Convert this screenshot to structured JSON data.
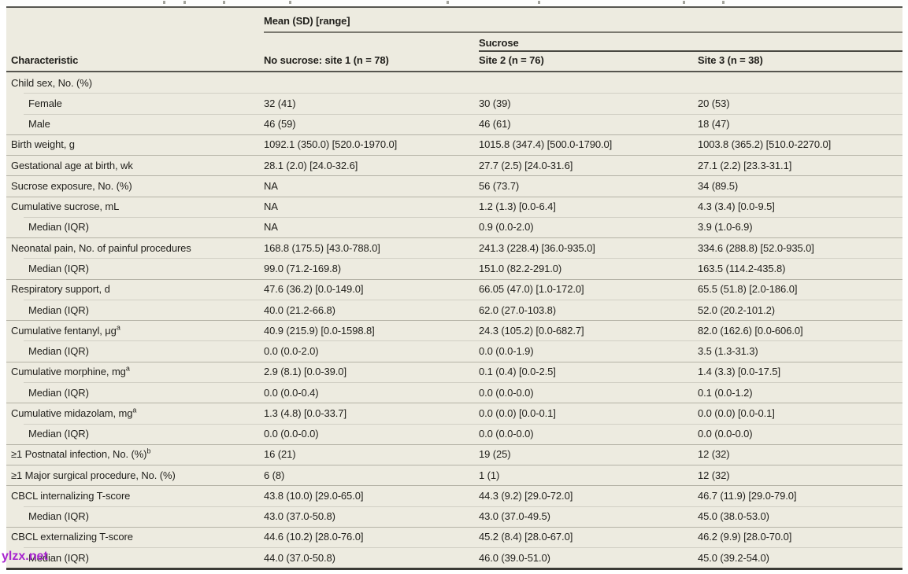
{
  "table": {
    "spanner_top": "Mean (SD) [range]",
    "spanner_sub": "Sucrose",
    "columns": {
      "characteristic": "Characteristic",
      "col1": "No sucrose: site 1 (n = 78)",
      "col2": "Site 2 (n = 76)",
      "col3": "Site 3 (n = 38)"
    },
    "rows": [
      {
        "label": "Child sex, No. (%)",
        "indent": false,
        "sup": "",
        "divider": "none",
        "values": [
          "",
          "",
          ""
        ]
      },
      {
        "label": "Female",
        "indent": true,
        "sup": "",
        "divider": "indent",
        "values": [
          "32 (41)",
          "30 (39)",
          "20 (53)"
        ]
      },
      {
        "label": "Male",
        "indent": true,
        "sup": "",
        "divider": "indent",
        "values": [
          "46 (59)",
          "46 (61)",
          "18 (47)"
        ]
      },
      {
        "label": "Birth weight, g",
        "indent": false,
        "sup": "",
        "divider": "full",
        "values": [
          "1092.1 (350.0) [520.0-1970.0]",
          "1015.8 (347.4) [500.0-1790.0]",
          "1003.8 (365.2) [510.0-2270.0]"
        ]
      },
      {
        "label": "Gestational age at birth, wk",
        "indent": false,
        "sup": "",
        "divider": "full",
        "values": [
          "28.1 (2.0) [24.0-32.6]",
          "27.7 (2.5) [24.0-31.6]",
          "27.1 (2.2) [23.3-31.1]"
        ]
      },
      {
        "label": "Sucrose exposure, No. (%)",
        "indent": false,
        "sup": "",
        "divider": "full",
        "values": [
          "NA",
          "56 (73.7)",
          "34 (89.5)"
        ]
      },
      {
        "label": "Cumulative sucrose, mL",
        "indent": false,
        "sup": "",
        "divider": "full",
        "values": [
          "NA",
          "1.2 (1.3) [0.0-6.4]",
          "4.3 (3.4) [0.0-9.5]"
        ]
      },
      {
        "label": "Median (IQR)",
        "indent": true,
        "sup": "",
        "divider": "indent",
        "values": [
          "NA",
          "0.9 (0.0-2.0)",
          "3.9 (1.0-6.9)"
        ]
      },
      {
        "label": "Neonatal pain, No. of painful procedures",
        "indent": false,
        "sup": "",
        "divider": "full",
        "values": [
          "168.8 (175.5) [43.0-788.0]",
          "241.3 (228.4) [36.0-935.0]",
          "334.6 (288.8) [52.0-935.0]"
        ]
      },
      {
        "label": "Median (IQR)",
        "indent": true,
        "sup": "",
        "divider": "indent",
        "values": [
          "99.0 (71.2-169.8)",
          "151.0 (82.2-291.0)",
          "163.5 (114.2-435.8)"
        ]
      },
      {
        "label": "Respiratory support, d",
        "indent": false,
        "sup": "",
        "divider": "full",
        "values": [
          "47.6 (36.2) [0.0-149.0]",
          "66.05 (47.0) [1.0-172.0]",
          "65.5 (51.8) [2.0-186.0]"
        ]
      },
      {
        "label": "Median (IQR)",
        "indent": true,
        "sup": "",
        "divider": "indent",
        "values": [
          "40.0 (21.2-66.8)",
          "62.0 (27.0-103.8)",
          "52.0 (20.2-101.2)"
        ]
      },
      {
        "label": "Cumulative fentanyl, μg",
        "indent": false,
        "sup": "a",
        "divider": "full",
        "values": [
          "40.9 (215.9) [0.0-1598.8]",
          "24.3 (105.2) [0.0-682.7]",
          "82.0 (162.6) [0.0-606.0]"
        ]
      },
      {
        "label": "Median (IQR)",
        "indent": true,
        "sup": "",
        "divider": "indent",
        "values": [
          "0.0 (0.0-2.0)",
          "0.0 (0.0-1.9)",
          "3.5 (1.3-31.3)"
        ]
      },
      {
        "label": "Cumulative morphine, mg",
        "indent": false,
        "sup": "a",
        "divider": "full",
        "values": [
          "2.9 (8.1) [0.0-39.0]",
          "0.1 (0.4) [0.0-2.5]",
          "1.4 (3.3) [0.0-17.5]"
        ]
      },
      {
        "label": "Median (IQR)",
        "indent": true,
        "sup": "",
        "divider": "indent",
        "values": [
          "0.0 (0.0-0.4)",
          "0.0 (0.0-0.0)",
          "0.1 (0.0-1.2)"
        ]
      },
      {
        "label": "Cumulative midazolam, mg",
        "indent": false,
        "sup": "a",
        "divider": "full",
        "values": [
          "1.3 (4.8) [0.0-33.7]",
          "0.0 (0.0) [0.0-0.1]",
          "0.0 (0.0) [0.0-0.1]"
        ]
      },
      {
        "label": "Median (IQR)",
        "indent": true,
        "sup": "",
        "divider": "indent",
        "values": [
          "0.0 (0.0-0.0)",
          "0.0 (0.0-0.0)",
          "0.0 (0.0-0.0)"
        ]
      },
      {
        "label": "≥1 Postnatal infection, No. (%)",
        "indent": false,
        "sup": "b",
        "divider": "full",
        "values": [
          "16 (21)",
          "19 (25)",
          "12 (32)"
        ]
      },
      {
        "label": "≥1 Major surgical procedure, No. (%)",
        "indent": false,
        "sup": "",
        "divider": "full",
        "values": [
          "6 (8)",
          "1 (1)",
          "12 (32)"
        ]
      },
      {
        "label": "CBCL internalizing T-score",
        "indent": false,
        "sup": "",
        "divider": "full",
        "values": [
          "43.8 (10.0) [29.0-65.0]",
          "44.3 (9.2) [29.0-72.0]",
          "46.7 (11.9) [29.0-79.0]"
        ]
      },
      {
        "label": "Median (IQR)",
        "indent": true,
        "sup": "",
        "divider": "indent",
        "values": [
          "43.0 (37.0-50.8)",
          "43.0 (37.0-49.5)",
          "45.0 (38.0-53.0)"
        ]
      },
      {
        "label": "CBCL externalizing T-score",
        "indent": false,
        "sup": "",
        "divider": "full",
        "values": [
          "44.6 (10.2) [28.0-76.0]",
          "45.2 (8.4) [28.0-67.0]",
          "46.2 (9.9) [28.0-70.0]"
        ]
      },
      {
        "label": "Median (IQR)",
        "indent": true,
        "sup": "",
        "divider": "indent",
        "values": [
          "44.0 (37.0-50.8)",
          "46.0 (39.0-51.0)",
          "45.0 (39.2-54.0)"
        ]
      }
    ]
  },
  "watermark": "ylzx.net",
  "colors": {
    "table_background": "#edebe0",
    "text": "#201f1b",
    "heavy_rule": "#56554f",
    "bottom_rule": "#3b3a35",
    "full_divider": "#b4b2a6",
    "indent_divider": "#d2d0c5",
    "watermark": "#a826cf"
  }
}
